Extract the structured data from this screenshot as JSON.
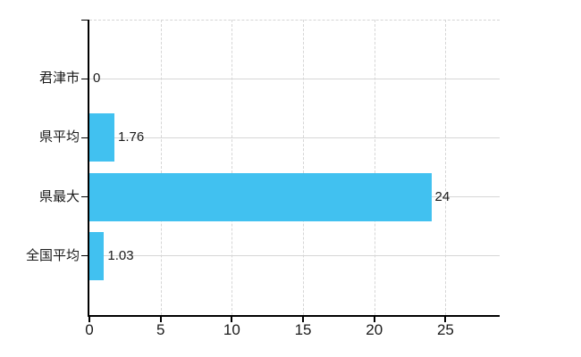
{
  "chart_data": {
    "type": "bar",
    "orientation": "horizontal",
    "title": "",
    "xlabel": "",
    "ylabel": "",
    "categories": [
      "君津市",
      "県平均",
      "県最大",
      "全国平均"
    ],
    "values": [
      0,
      1.76,
      24,
      1.03
    ],
    "value_labels": [
      "0",
      "1.76",
      "24",
      "1.03"
    ],
    "x_ticks": [
      0,
      5,
      10,
      15,
      20,
      25
    ],
    "x_tick_labels": [
      "0",
      "5",
      "10",
      "15",
      "20",
      "25"
    ],
    "xlim": [
      0,
      28.8
    ],
    "legend_position": "none",
    "grid": {
      "vertical_style": "dashed",
      "horizontal_style": "solid",
      "top_border_style": "dashed"
    },
    "colors": {
      "bar": "#41C1F0",
      "grid": "#D6D6D6",
      "axis": "#000000",
      "text": "#1A1A1A"
    }
  }
}
